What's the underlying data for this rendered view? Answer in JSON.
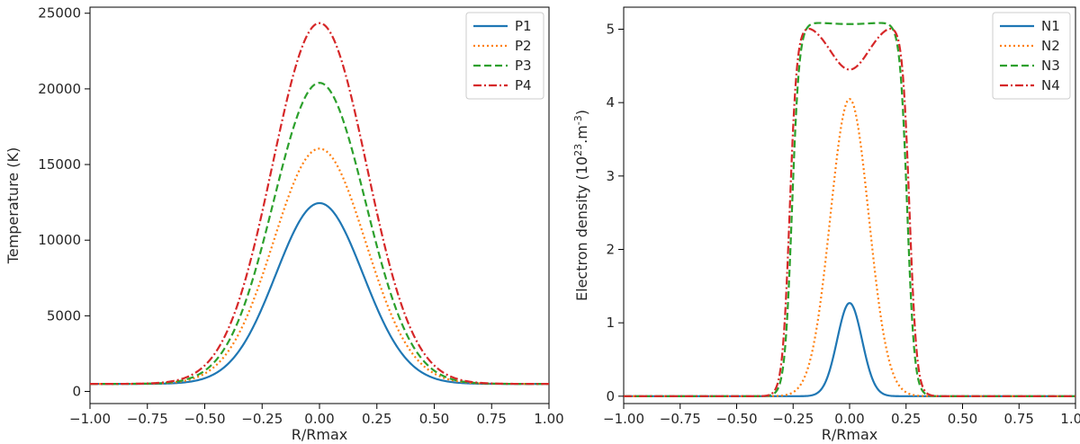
{
  "chart_data": [
    {
      "type": "line",
      "xlabel": "R/Rmax",
      "ylabel": "Temperature (K)",
      "xlim": [
        -1.0,
        1.0
      ],
      "ylim": [
        -800,
        25400
      ],
      "x_ticks": [
        -1.0,
        -0.75,
        -0.5,
        -0.25,
        0.0,
        0.25,
        0.5,
        0.75,
        1.0
      ],
      "x_tick_labels": [
        "−1.00",
        "−0.75",
        "−0.50",
        "−0.25",
        "0.00",
        "0.25",
        "0.50",
        "0.75",
        "1.00"
      ],
      "y_ticks": [
        0,
        5000,
        10000,
        15000,
        20000,
        25000
      ],
      "y_tick_labels": [
        "0",
        "5000",
        "10000",
        "15000",
        "20000",
        "25000"
      ],
      "legend": "top-right",
      "grid": false,
      "series": [
        {
          "name": "P1",
          "color": "#1f77b4",
          "dash": "solid",
          "shape": "gaussian",
          "peak": 12450,
          "baseline": 500,
          "sigma": 0.19
        },
        {
          "name": "P2",
          "color": "#ff7f0e",
          "dash": "dotted",
          "shape": "gaussian",
          "peak": 16050,
          "baseline": 500,
          "sigma": 0.2
        },
        {
          "name": "P3",
          "color": "#2ca02c",
          "dash": "dashed",
          "shape": "gaussian",
          "peak": 20400,
          "baseline": 500,
          "sigma": 0.2
        },
        {
          "name": "P4",
          "color": "#d62728",
          "dash": "dashdot",
          "shape": "gaussian",
          "peak": 24350,
          "baseline": 500,
          "sigma": 0.205
        }
      ]
    },
    {
      "type": "line",
      "xlabel": "R/Rmax",
      "ylabel_main": "Electron density (10",
      "ylabel_sup1": "23",
      "ylabel_mid": ".m",
      "ylabel_sup2": "-3",
      "ylabel_end": ")",
      "xlim": [
        -1.0,
        1.0
      ],
      "ylim": [
        -0.1,
        5.3
      ],
      "x_ticks": [
        -1.0,
        -0.75,
        -0.5,
        -0.25,
        0.0,
        0.25,
        0.5,
        0.75,
        1.0
      ],
      "x_tick_labels": [
        "−1.00",
        "−0.75",
        "−0.50",
        "−0.25",
        "0.00",
        "0.25",
        "0.50",
        "0.75",
        "1.00"
      ],
      "y_ticks": [
        0,
        1,
        2,
        3,
        4,
        5
      ],
      "y_tick_labels": [
        "0",
        "1",
        "2",
        "3",
        "4",
        "5"
      ],
      "legend": "top-right",
      "grid": false,
      "series": [
        {
          "name": "N1",
          "color": "#1f77b4",
          "dash": "solid",
          "shape": "gaussian",
          "peak": 1.27,
          "baseline": 0,
          "sigma": 0.055
        },
        {
          "name": "N2",
          "color": "#ff7f0e",
          "dash": "dotted",
          "shape": "gaussian",
          "peak": 4.05,
          "baseline": 0,
          "sigma": 0.085
        },
        {
          "name": "N3",
          "color": "#2ca02c",
          "dash": "dashed",
          "shape": "flattop",
          "plateau": 5.1,
          "edge": 0.255,
          "softness": 0.016,
          "dip": 0.03,
          "dip_width": 0.1
        },
        {
          "name": "N4",
          "color": "#d62728",
          "dash": "dashdot",
          "shape": "flattop",
          "plateau": 5.1,
          "edge": 0.265,
          "softness": 0.016,
          "dip": 0.65,
          "dip_width": 0.085
        }
      ]
    }
  ]
}
